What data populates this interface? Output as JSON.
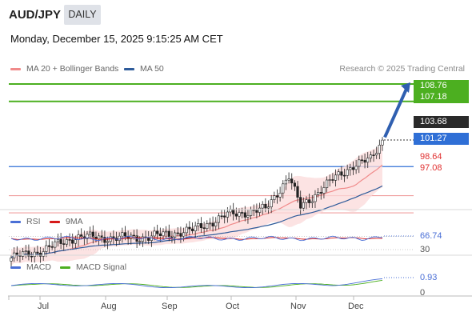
{
  "header": {
    "symbol": "AUD/JPY",
    "period": "DAILY"
  },
  "timestamp": "Monday, December 15, 2025 9:15:25 AM CET",
  "legend": {
    "bollinger": {
      "label": "MA 20 + Bollinger Bands",
      "color": "#f08a8a"
    },
    "ma50": {
      "label": "MA 50",
      "color": "#2e5b9a"
    }
  },
  "credit": "Research © 2025 Trading Central",
  "price_levels": [
    {
      "label": "108.76",
      "value": 108.76,
      "color": "#4caf20",
      "style": "tag"
    },
    {
      "label": "107.18",
      "value": 107.18,
      "color": "#4caf20",
      "style": "tag"
    },
    {
      "label": "103.68",
      "value": 103.68,
      "color": "#2a2a2a",
      "style": "tag"
    },
    {
      "label": "101.27",
      "value": 101.27,
      "color": "#2f6fd6",
      "style": "tag"
    },
    {
      "label": "98.64",
      "value": 98.64,
      "color": "#e03030",
      "style": "text"
    },
    {
      "label": "97.08",
      "value": 97.08,
      "color": "#e03030",
      "style": "text"
    }
  ],
  "rsi": {
    "label": "RSI",
    "ma_label": "9MA",
    "rsi_color": "#4a6fd6",
    "ma_color": "#d61a1a",
    "value_label": "66.74",
    "lower_label": "30"
  },
  "macd": {
    "label": "MACD",
    "signal_label": "MACD Signal",
    "macd_color": "#4a6fd6",
    "signal_color": "#4caf20",
    "value_label": "0.93",
    "zero_label": "0"
  },
  "months": [
    "Jul",
    "Aug",
    "Sep",
    "Oct",
    "Nov",
    "Dec"
  ],
  "chart_data": {
    "type": "candlestick",
    "title": "AUD/JPY",
    "period": "DAILY",
    "x_labels": [
      "Jul",
      "Aug",
      "Sep",
      "Oct",
      "Nov",
      "Dec"
    ],
    "price_range": [
      91.0,
      108.76
    ],
    "close_path": [
      {
        "date": "Jun 19",
        "close": 93.0
      },
      {
        "date": "Jul 1",
        "close": 93.6
      },
      {
        "date": "Jul 15",
        "close": 94.9
      },
      {
        "date": "Aug 1",
        "close": 94.8
      },
      {
        "date": "Aug 15",
        "close": 94.9
      },
      {
        "date": "Sep 1",
        "close": 95.5
      },
      {
        "date": "Sep 15",
        "close": 96.9
      },
      {
        "date": "Oct 1",
        "close": 97.4
      },
      {
        "date": "Oct 10",
        "close": 100.4
      },
      {
        "date": "Oct 15",
        "close": 97.6
      },
      {
        "date": "Nov 1",
        "close": 100.1
      },
      {
        "date": "Nov 15",
        "close": 101.4
      },
      {
        "date": "Dec 1",
        "close": 101.9
      },
      {
        "date": "Dec 12",
        "close": 103.68
      }
    ],
    "current_price": 103.68,
    "resistance": [
      107.18,
      108.76
    ],
    "pivot": 101.27,
    "support": [
      98.64,
      97.08
    ],
    "indicators": {
      "rsi_last": 66.74,
      "macd_last": 0.93
    },
    "projection_target": 108.76,
    "grid": false
  }
}
